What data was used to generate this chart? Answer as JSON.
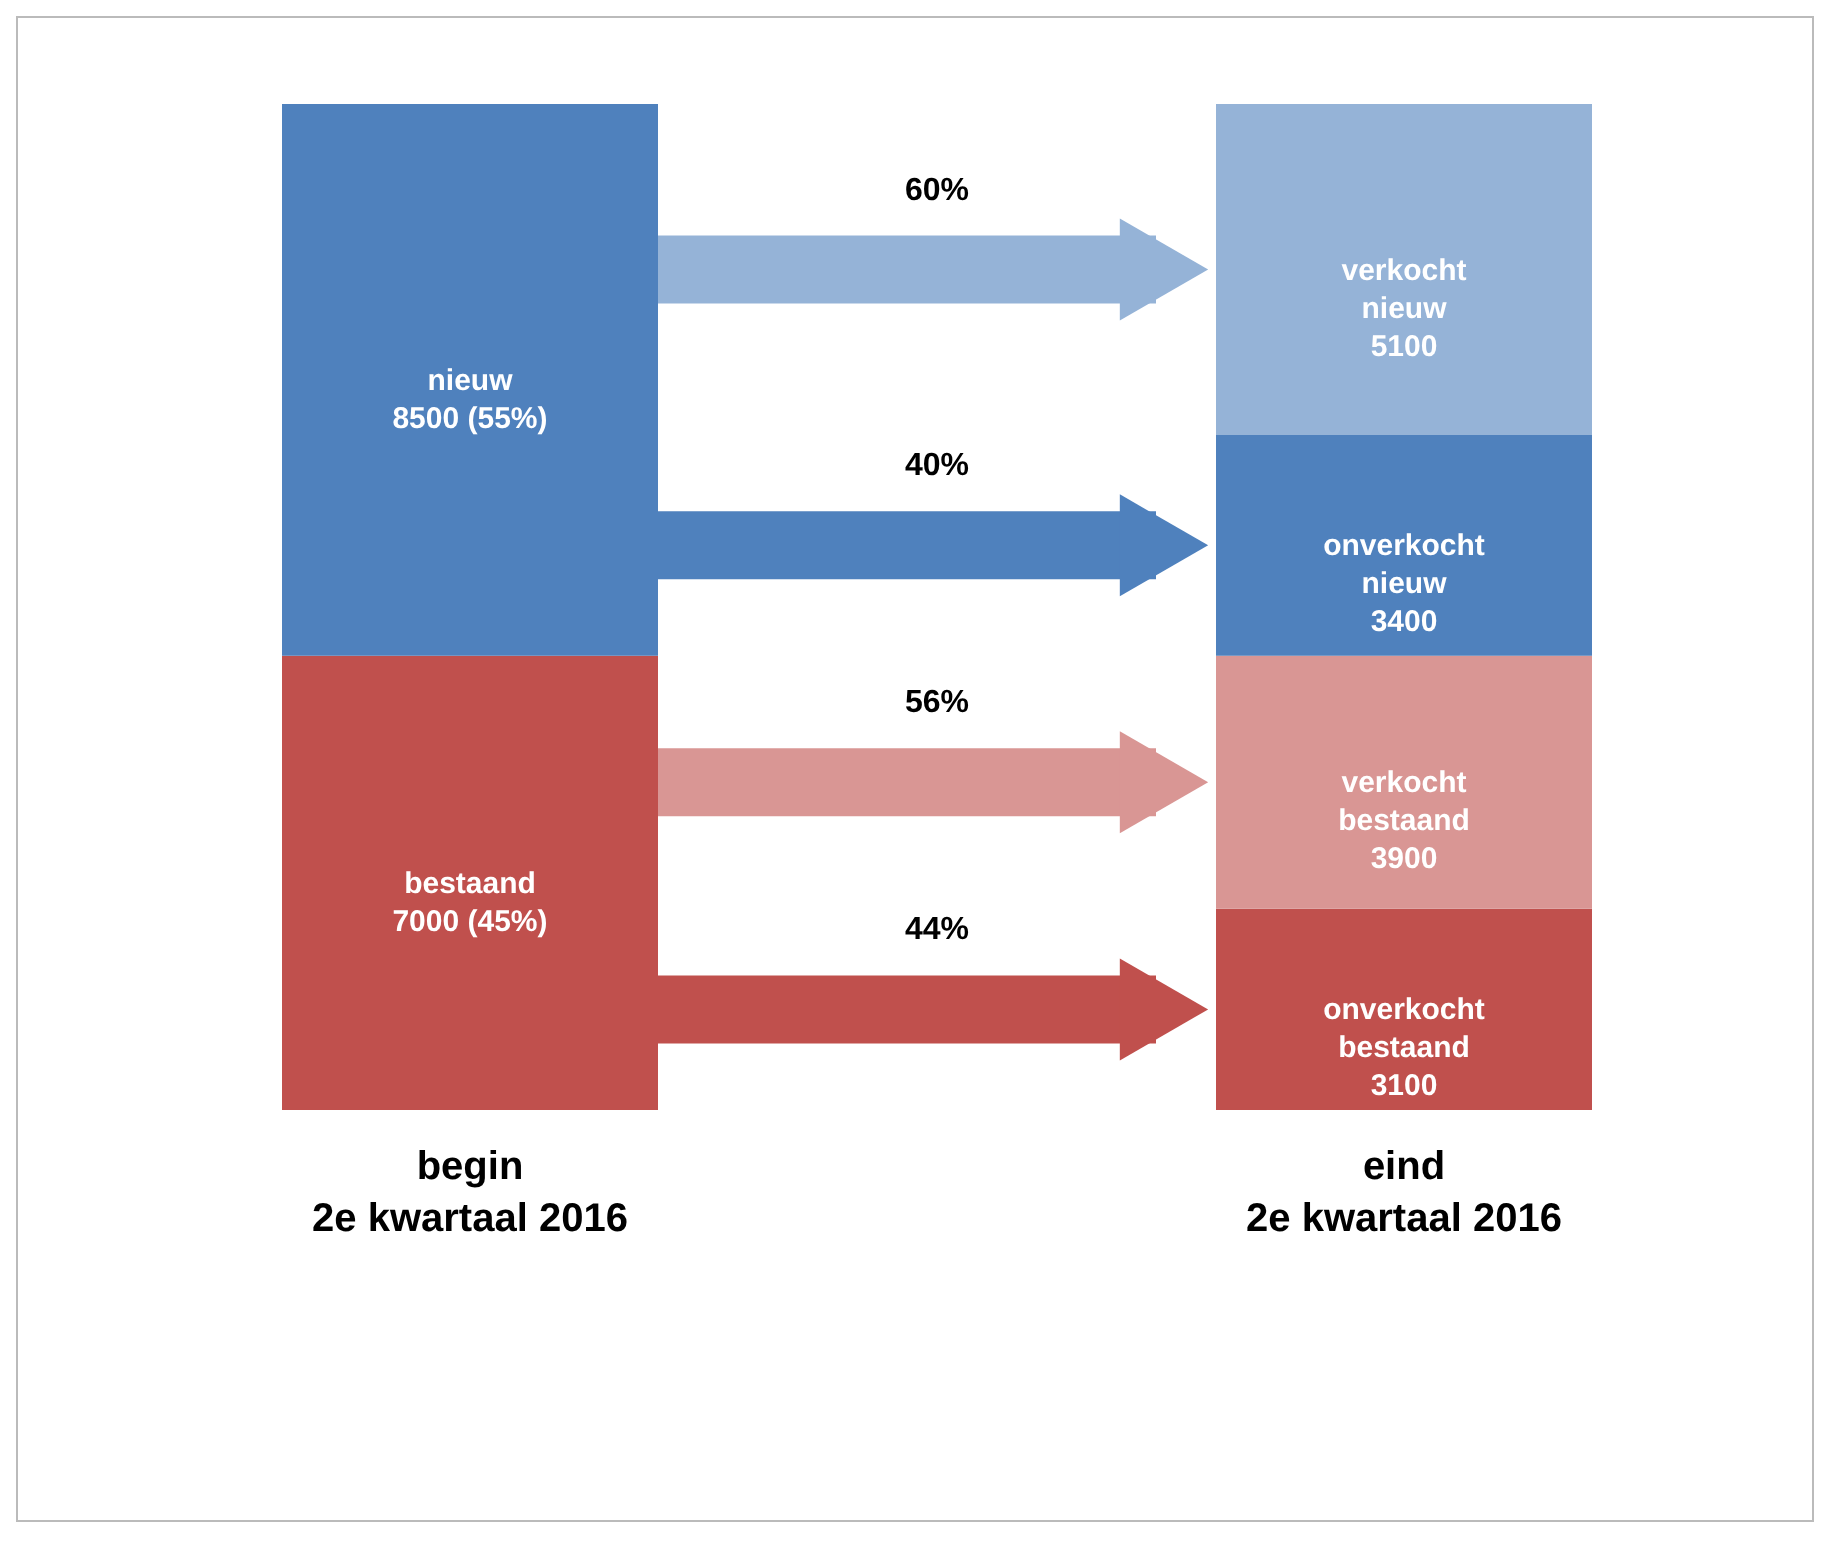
{
  "chart_data": {
    "type": "other",
    "categories": [
      "begin\n2e kwartaal 2016",
      "eind\n2e kwartaal 2016"
    ],
    "series": [
      {
        "name": "bestaand",
        "color": "#c0504d",
        "values": [
          7000,
          null
        ],
        "value_labels": [
          "7000  (45%)",
          null
        ]
      },
      {
        "name": "nieuw",
        "color": "#4f81bd",
        "values": [
          8500,
          null
        ],
        "value_labels": [
          "8500  (55%)",
          null
        ]
      },
      {
        "name": "onverkocht bestaand",
        "color": "#c0504d",
        "values": [
          null,
          3100
        ],
        "value_labels": [
          null,
          "3100"
        ]
      },
      {
        "name": "verkocht bestaand",
        "color": "#d99694",
        "values": [
          null,
          3900
        ],
        "value_labels": [
          null,
          "3900"
        ]
      },
      {
        "name": "onverkocht nieuw",
        "color": "#4f81bd",
        "values": [
          null,
          3400
        ],
        "value_labels": [
          null,
          "3400"
        ]
      },
      {
        "name": "verkocht nieuw",
        "color": "#95b3d7",
        "values": [
          null,
          5100
        ],
        "value_labels": [
          null,
          "5100"
        ]
      }
    ],
    "annotations": [
      "60%",
      "40%",
      "56%",
      "44%"
    ]
  }
}
